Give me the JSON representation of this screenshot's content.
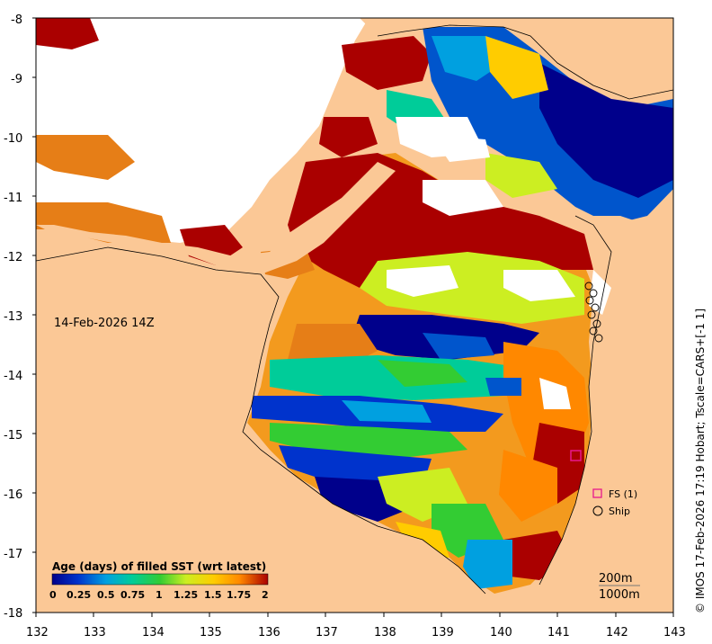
{
  "map": {
    "date_label": "14-Feb-2026 14Z",
    "credit": "© IMOS 17-Feb-2026 17:19 Hobart; Tscale=CARS+[-1 1]",
    "x_ticks": [
      "132",
      "133",
      "134",
      "135",
      "136",
      "137",
      "138",
      "139",
      "140",
      "141",
      "142",
      "143"
    ],
    "y_ticks": [
      "-8",
      "-9",
      "-10",
      "-11",
      "-12",
      "-13",
      "-14",
      "-15",
      "-16",
      "-17",
      "-18"
    ],
    "lon_range": [
      132,
      143
    ],
    "lat_range": [
      -18,
      -8
    ],
    "colors": {
      "land": "#fbc896",
      "nodata": "#ffffff",
      "ship_marker": "#000000",
      "fs_marker": "#e8198c"
    }
  },
  "colorbar": {
    "title": "Age (days) of filled SST (wrt latest)",
    "tick_labels": [
      "0",
      "0.25",
      "0.5",
      "0.75",
      "1",
      "1.25",
      "1.5",
      "1.75",
      "2"
    ],
    "range": [
      0,
      2
    ],
    "colors": [
      "#00008b",
      "#0033cc",
      "#00a0e0",
      "#00cc99",
      "#33cc33",
      "#ccee22",
      "#ffcc00",
      "#ff8800",
      "#aa0000"
    ]
  },
  "legend": {
    "fs_label": "FS (1)",
    "ship_label": "Ship"
  },
  "contours": {
    "line1": "200m",
    "line2": "1000m"
  },
  "markers": {
    "fs_station": {
      "lon": 141.3,
      "lat": -15.35
    }
  }
}
